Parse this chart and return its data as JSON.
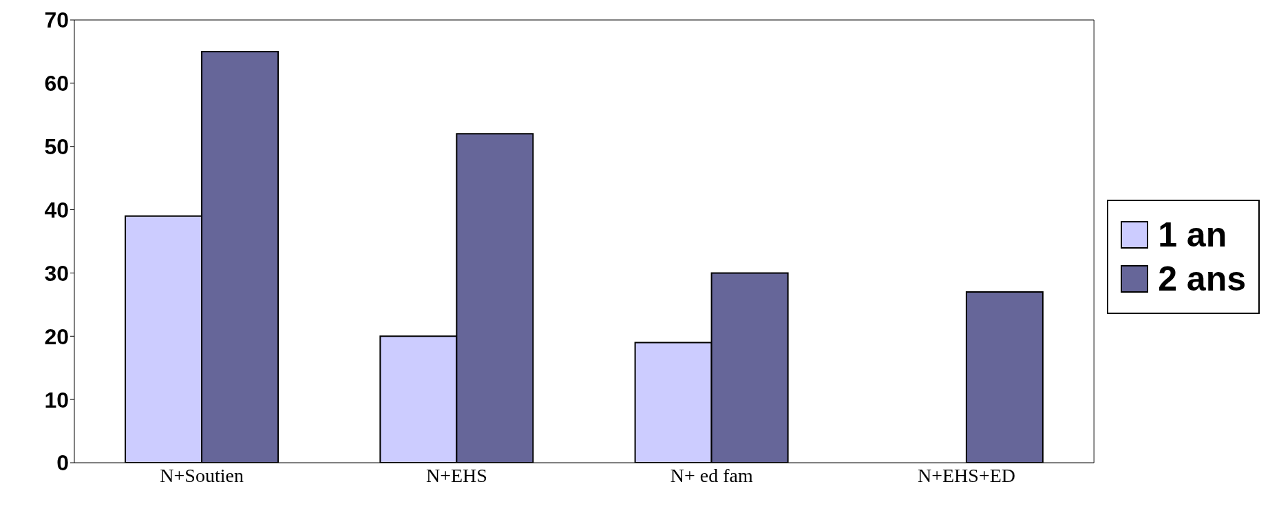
{
  "chart_data": {
    "type": "bar",
    "categories": [
      "N+Soutien",
      "N+EHS",
      "N+ ed fam",
      "N+EHS+ED"
    ],
    "series": [
      {
        "name": "1 an",
        "color": "#ccccff",
        "values": [
          39,
          20,
          19,
          null
        ]
      },
      {
        "name": "2 ans",
        "color": "#666699",
        "values": [
          65,
          52,
          30,
          27
        ]
      }
    ],
    "ylim": [
      0,
      70
    ],
    "yticks": [
      0,
      10,
      20,
      30,
      40,
      50,
      60,
      70
    ],
    "legend": "right"
  }
}
